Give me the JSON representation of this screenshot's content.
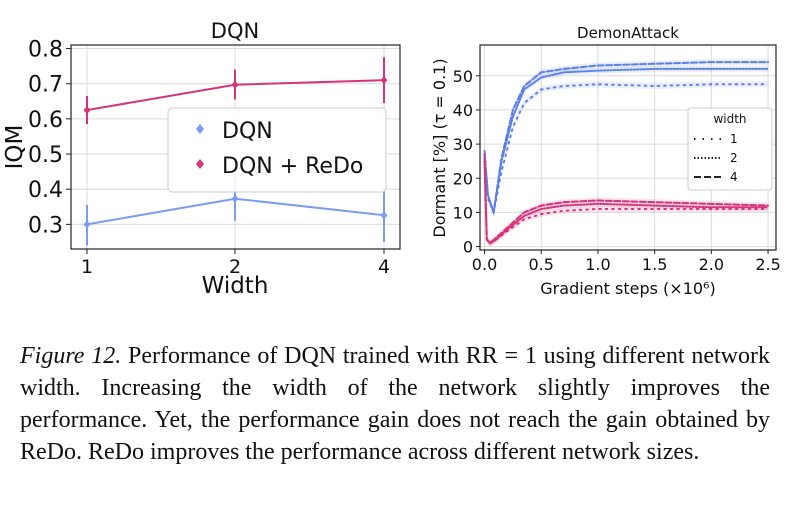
{
  "chart_data": [
    {
      "type": "line",
      "title": "DQN",
      "xlabel": "Width",
      "ylabel": "IQM",
      "categories": [
        "1",
        "2",
        "4"
      ],
      "yticks": [
        "0.3",
        "0.4",
        "0.5",
        "0.6",
        "0.7",
        "0.8"
      ],
      "ylim": [
        0.23,
        0.81
      ],
      "grid": true,
      "legend": "center-right",
      "series": [
        {
          "name": "DQN",
          "color": "#7b9cf2",
          "values": [
            0.3,
            0.373,
            0.326
          ],
          "err_low": [
            0.24,
            0.31,
            0.25
          ],
          "err_high": [
            0.355,
            0.44,
            0.4
          ]
        },
        {
          "name": "DQN + ReDo",
          "color": "#d6337a",
          "values": [
            0.625,
            0.697,
            0.71
          ],
          "err_low": [
            0.585,
            0.655,
            0.645
          ],
          "err_high": [
            0.665,
            0.74,
            0.775
          ]
        }
      ]
    },
    {
      "type": "line",
      "title": "DemonAttack",
      "xlabel": "Gradient steps (×10⁶)",
      "ylabel": "Dormant [%] (τ = 0.1)",
      "xticks": [
        "0.0",
        "0.5",
        "1.0",
        "1.5",
        "2.0",
        "2.5"
      ],
      "yticks": [
        "0",
        "10",
        "20",
        "30",
        "40",
        "50"
      ],
      "xlim": [
        -0.04,
        2.57
      ],
      "ylim": [
        -1,
        59
      ],
      "grid": true,
      "legend": "center-right",
      "legend_title": "width",
      "legend_entries": [
        {
          "label": "1",
          "style": "dotted-sparse"
        },
        {
          "label": "2",
          "style": "dotted"
        },
        {
          "label": "4",
          "style": "dashed"
        }
      ],
      "series": [
        {
          "name": "DQN width 1",
          "color": "#5b7fe8",
          "x": [
            0,
            0.03,
            0.08,
            0.15,
            0.25,
            0.35,
            0.5,
            0.7,
            1.0,
            1.5,
            2.0,
            2.5
          ],
          "values": [
            27,
            14,
            10,
            22,
            35,
            42,
            46,
            47,
            47.5,
            47,
            47.5,
            47.5
          ]
        },
        {
          "name": "DQN width 2",
          "color": "#5b7fe8",
          "x": [
            0,
            0.03,
            0.08,
            0.15,
            0.25,
            0.35,
            0.5,
            0.7,
            1.0,
            1.5,
            2.0,
            2.5
          ],
          "values": [
            27,
            15,
            10,
            25,
            38,
            46,
            49.5,
            51,
            51.5,
            52,
            52,
            52
          ]
        },
        {
          "name": "DQN width 4",
          "color": "#5b7fe8",
          "x": [
            0,
            0.03,
            0.08,
            0.15,
            0.25,
            0.35,
            0.5,
            0.7,
            1.0,
            1.5,
            2.0,
            2.5
          ],
          "values": [
            28,
            15,
            10,
            26,
            40,
            47,
            51,
            52,
            53,
            53.5,
            54,
            54
          ]
        },
        {
          "name": "ReDo width 1",
          "color": "#d6337a",
          "x": [
            0,
            0.02,
            0.05,
            0.1,
            0.2,
            0.35,
            0.5,
            0.7,
            1.0,
            1.5,
            2.0,
            2.5
          ],
          "values": [
            27,
            2,
            1,
            2,
            4.5,
            8,
            9.5,
            10.5,
            11,
            11,
            11,
            11
          ]
        },
        {
          "name": "ReDo width 2",
          "color": "#d6337a",
          "x": [
            0,
            0.02,
            0.05,
            0.1,
            0.2,
            0.35,
            0.5,
            0.7,
            1.0,
            1.5,
            2.0,
            2.5
          ],
          "values": [
            26,
            2,
            1,
            2,
            5,
            9,
            11,
            12,
            12.5,
            12,
            11.5,
            11.5
          ]
        },
        {
          "name": "ReDo width 4",
          "color": "#d6337a",
          "x": [
            0,
            0.02,
            0.05,
            0.1,
            0.2,
            0.35,
            0.5,
            0.7,
            1.0,
            1.5,
            2.0,
            2.5
          ],
          "values": [
            25,
            2,
            1,
            2.5,
            5.5,
            10,
            12,
            13,
            13.5,
            13,
            12.5,
            12
          ]
        }
      ]
    }
  ],
  "caption": {
    "label": "Figure 12.",
    "text": " Performance of DQN trained with RR = 1 using different network width. Increasing the width of the network slightly improves the performance. Yet, the performance gain does not reach the gain obtained by ReDo. ReDo improves the performance across different network sizes."
  }
}
